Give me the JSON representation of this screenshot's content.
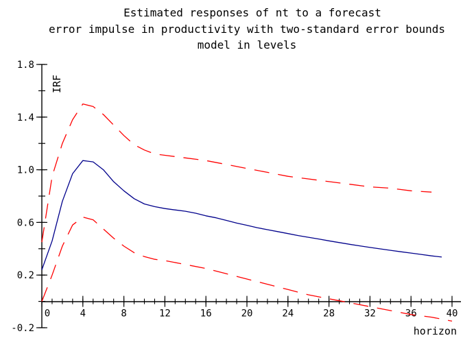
{
  "chart_data": {
    "type": "line",
    "title_lines": [
      "Estimated responses of nt to a forecast",
      "error impulse in productivity with two-standard error bounds",
      "model in levels"
    ],
    "xlabel": "horizon",
    "ylabel": "IRF",
    "xlim": [
      0,
      40
    ],
    "ylim": [
      -0.2,
      1.8
    ],
    "x_ticks": [
      0,
      4,
      8,
      12,
      16,
      20,
      24,
      28,
      32,
      36,
      40
    ],
    "x_minor_step": 1,
    "y_ticks": [
      -0.2,
      0.2,
      0.6,
      1.0,
      1.4,
      1.8
    ],
    "y_tick_labels": [
      "-0.2",
      "0.2",
      "0.6",
      "1.0",
      "1.4",
      "1.8"
    ],
    "y_minor_step": 0.2,
    "grid": false,
    "series": [
      {
        "role": "estimate",
        "color": "#00008b",
        "style": "solid",
        "x": [
          0,
          1,
          2,
          3,
          4,
          5,
          6,
          7,
          8,
          9,
          10,
          11,
          12,
          13,
          14,
          15,
          16,
          17,
          18,
          19,
          20,
          21,
          22,
          23,
          24,
          25,
          26,
          27,
          28,
          29,
          30,
          31,
          32,
          33,
          34,
          35,
          36,
          37,
          38,
          39
        ],
        "values": [
          0.24,
          0.46,
          0.76,
          0.97,
          1.07,
          1.06,
          1.0,
          0.91,
          0.84,
          0.78,
          0.74,
          0.72,
          0.705,
          0.695,
          0.685,
          0.67,
          0.65,
          0.635,
          0.615,
          0.595,
          0.578,
          0.56,
          0.545,
          0.53,
          0.515,
          0.5,
          0.487,
          0.474,
          0.46,
          0.447,
          0.434,
          0.422,
          0.41,
          0.399,
          0.388,
          0.377,
          0.367,
          0.357,
          0.346,
          0.337
        ]
      },
      {
        "role": "upper-bound",
        "color": "#ff0000",
        "style": "dashed",
        "x": [
          0,
          1,
          2,
          3,
          4,
          5,
          6,
          7,
          8,
          9,
          10,
          11,
          12,
          14,
          16,
          18,
          20,
          22,
          24,
          26,
          28,
          30,
          32,
          34,
          36,
          38
        ],
        "values": [
          0.45,
          0.95,
          1.2,
          1.38,
          1.5,
          1.48,
          1.42,
          1.34,
          1.26,
          1.19,
          1.15,
          1.12,
          1.11,
          1.09,
          1.07,
          1.04,
          1.01,
          0.98,
          0.95,
          0.93,
          0.91,
          0.89,
          0.87,
          0.86,
          0.84,
          0.83
        ]
      },
      {
        "role": "lower-bound",
        "color": "#ff0000",
        "style": "dashed",
        "x": [
          0,
          1,
          2,
          3,
          4,
          5,
          6,
          7,
          8,
          9,
          10,
          11,
          12,
          14,
          16,
          18,
          20,
          22,
          24,
          26,
          28,
          30,
          32,
          34,
          36,
          38,
          40
        ],
        "values": [
          0.0,
          0.2,
          0.42,
          0.58,
          0.64,
          0.62,
          0.55,
          0.48,
          0.42,
          0.37,
          0.34,
          0.32,
          0.31,
          0.28,
          0.25,
          0.21,
          0.17,
          0.13,
          0.09,
          0.05,
          0.02,
          -0.01,
          -0.04,
          -0.07,
          -0.1,
          -0.12,
          -0.15
        ]
      }
    ]
  }
}
